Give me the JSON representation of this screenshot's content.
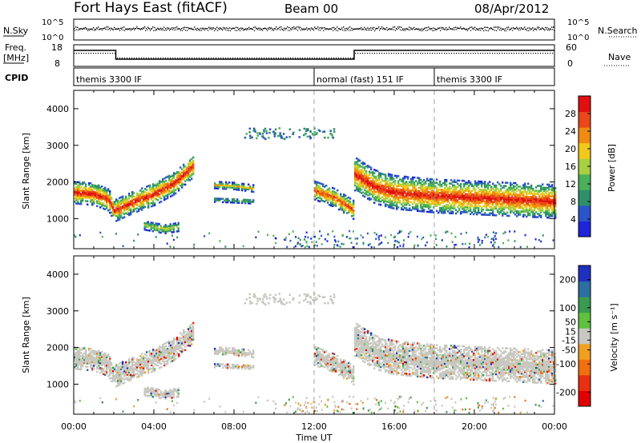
{
  "header": {
    "station": "Fort Hays East (fitACF)",
    "beam": "Beam 00",
    "date": "08/Apr/2012"
  },
  "colors": {
    "power_scale": [
      "#1e24d8",
      "#2a55c8",
      "#2f8f6a",
      "#4ab05a",
      "#a8d040",
      "#f2c81a",
      "#f08a12",
      "#e8481a",
      "#e01010"
    ],
    "velocity_scale": [
      "#2030c0",
      "#2a70a0",
      "#3a9a50",
      "#60c040",
      "#c8c8c0",
      "#f0a020",
      "#f07010",
      "#e83010",
      "#e00000"
    ],
    "ground_scatter": "#c8c8c0",
    "cpid_line": "#a0a0a0"
  },
  "top_panel": {
    "nsky_label": "N.Sky",
    "nsearch_label": "N.Search",
    "nsky_ticks": [
      "10^5",
      "10^0"
    ],
    "nsearch_ticks": [
      "10^5",
      "10^0"
    ],
    "freq_label": "Freq.",
    "freq_unit": "[MHz]",
    "freq_ticks": [
      "18",
      "8"
    ],
    "nave_label": "Nave",
    "nave_ticks": [
      "60",
      "0"
    ],
    "cpid_label": "CPID",
    "cpid_segments": [
      {
        "label": "themis 3300 IF",
        "start": 0,
        "end": 12
      },
      {
        "label": "normal (fast) 151 IF",
        "start": 12,
        "end": 18
      },
      {
        "label": "themis 3300 IF",
        "start": 18,
        "end": 24
      }
    ]
  },
  "chart_data": [
    {
      "type": "heatmap",
      "name": "power",
      "xlabel": "",
      "ylabel": "Slant Range [km]",
      "xlim": [
        0,
        24
      ],
      "ylim": [
        180,
        4500
      ],
      "yticks": [
        1000,
        2000,
        3000,
        4000
      ],
      "colorbar": {
        "label": "Power [dB]",
        "ticks": [
          4,
          8,
          12,
          16,
          20,
          24,
          28
        ],
        "range": [
          0,
          32
        ]
      },
      "scatter_bands": [
        {
          "x": [
            0.0,
            1.0,
            1.7,
            2.0,
            3.0,
            4.0,
            5.0,
            6.0
          ],
          "y": [
            1700,
            1650,
            1500,
            1200,
            1450,
            1650,
            1950,
            2450
          ],
          "width": 300,
          "peak_power": 30
        },
        {
          "x": [
            7.0,
            8.0,
            9.0
          ],
          "y": [
            1900,
            1870,
            1800
          ],
          "width": 90,
          "peak_power": 20
        },
        {
          "x": [
            7.0,
            8.0,
            9.0
          ],
          "y": [
            1500,
            1480,
            1450
          ],
          "width": 60,
          "peak_power": 12
        },
        {
          "x": [
            3.5,
            4.5,
            5.2
          ],
          "y": [
            800,
            700,
            760
          ],
          "width": 120,
          "peak_power": 18
        },
        {
          "x": [
            12.0,
            13.0,
            14.0
          ],
          "y": [
            1750,
            1550,
            1200
          ],
          "width": 250,
          "peak_power": 28
        },
        {
          "x": [
            14.0,
            15.0,
            16.0,
            18.0,
            20.0,
            22.0,
            24.0
          ],
          "y": [
            2200,
            1850,
            1700,
            1600,
            1550,
            1500,
            1450
          ],
          "width": 450,
          "peak_power": 30
        }
      ]
    },
    {
      "type": "heatmap",
      "name": "velocity",
      "xlabel": "Time UT",
      "ylabel": "Slant Range [km]",
      "xlim": [
        0,
        24
      ],
      "xticks": [
        "00:00",
        "04:00",
        "08:00",
        "12:00",
        "16:00",
        "20:00",
        "00:00"
      ],
      "ylim": [
        180,
        4500
      ],
      "yticks": [
        1000,
        2000,
        3000,
        4000
      ],
      "colorbar": {
        "label": "Velocity [m s⁻¹]",
        "ticks": [
          200,
          100,
          50,
          15,
          -15,
          -50,
          -100,
          -200
        ],
        "range": [
          -250,
          250
        ]
      },
      "dominant": "ground scatter (grey)"
    }
  ]
}
